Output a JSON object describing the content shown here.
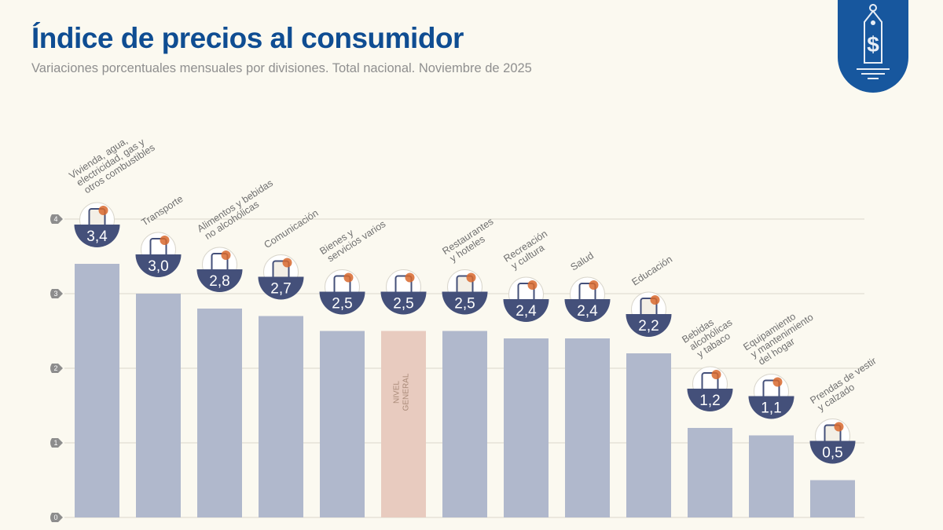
{
  "header": {
    "title": "Índice de precios al consumidor",
    "subtitle": "Variaciones porcentuales mensuales por divisiones. Total nacional. Noviembre de 2025",
    "logo_icon": "price-tag-dollar-icon"
  },
  "colors": {
    "title": "#0f4d92",
    "bar": "#b0b8cc",
    "highlight_bar": "#e8cbbf",
    "badge": "#44507a",
    "icon_accent": "#d8692e",
    "logo_bg": "#17579e"
  },
  "chart_data": {
    "type": "bar",
    "title": "Índice de precios al consumidor",
    "subtitle": "Variaciones porcentuales mensuales por divisiones. Total nacional. Noviembre de 2025",
    "xlabel": "",
    "ylabel": "",
    "ylim": [
      0,
      4
    ],
    "yticks": [
      0,
      1,
      2,
      3,
      4
    ],
    "grid": true,
    "legend": "none",
    "categories": [
      "Vivienda, agua, electricidad, gas y otros combustibles",
      "Transporte",
      "Alimentos y bebidas no alcohólicas",
      "Comunicación",
      "Bienes y servicios varios",
      "Nivel general",
      "Restaurantes y hoteles",
      "Recreación y cultura",
      "Salud",
      "Educación",
      "Bebidas alcohólicas y tabaco",
      "Equipamiento y mantenimiento del hogar",
      "Prendas de vestir y calzado"
    ],
    "category_label_lines": [
      [
        "Vivienda, agua,",
        "electricidad, gas y",
        "otros combustibles"
      ],
      [
        "Transporte"
      ],
      [
        "Alimentos y bebidas",
        "no alcohólicas"
      ],
      [
        "Comunicación"
      ],
      [
        "Bienes y",
        "servicios varios"
      ],
      [],
      [
        "Restaurantes",
        "y hoteles"
      ],
      [
        "Recreación",
        "y cultura"
      ],
      [
        "Salud"
      ],
      [
        "Educación"
      ],
      [
        "Bebidas",
        "alcohólicas",
        "y tabaco"
      ],
      [
        "Equipamiento",
        "y mantenimiento",
        "del hogar"
      ],
      [
        "Prendas de vestir",
        "y calzado"
      ]
    ],
    "values": [
      3.4,
      3.0,
      2.8,
      2.7,
      2.5,
      2.5,
      2.5,
      2.4,
      2.4,
      2.2,
      1.2,
      1.1,
      0.5
    ],
    "value_labels": [
      "3,4",
      "3,0",
      "2,8",
      "2,7",
      "2,5",
      "2,5",
      "2,5",
      "2,4",
      "2,4",
      "2,2",
      "1,2",
      "1,1",
      "0,5"
    ],
    "highlight_index": 5,
    "highlight_bar_label": [
      "NIVEL",
      "GENERAL"
    ],
    "icons": [
      "lightbulb-and-tools-icon",
      "bus-sube-card-icon",
      "food-and-drink-icon",
      "smartphone-icon",
      "comb-scissors-icon",
      "shopping-basket-icon",
      "plate-cutlery-icon",
      "beach-umbrella-sun-icon",
      "medical-cross-icon",
      "notebook-pencil-icon",
      "bottle-glass-cigarette-icon",
      "air-conditioner-appliance-icon",
      "tshirt-shoe-icon"
    ]
  }
}
